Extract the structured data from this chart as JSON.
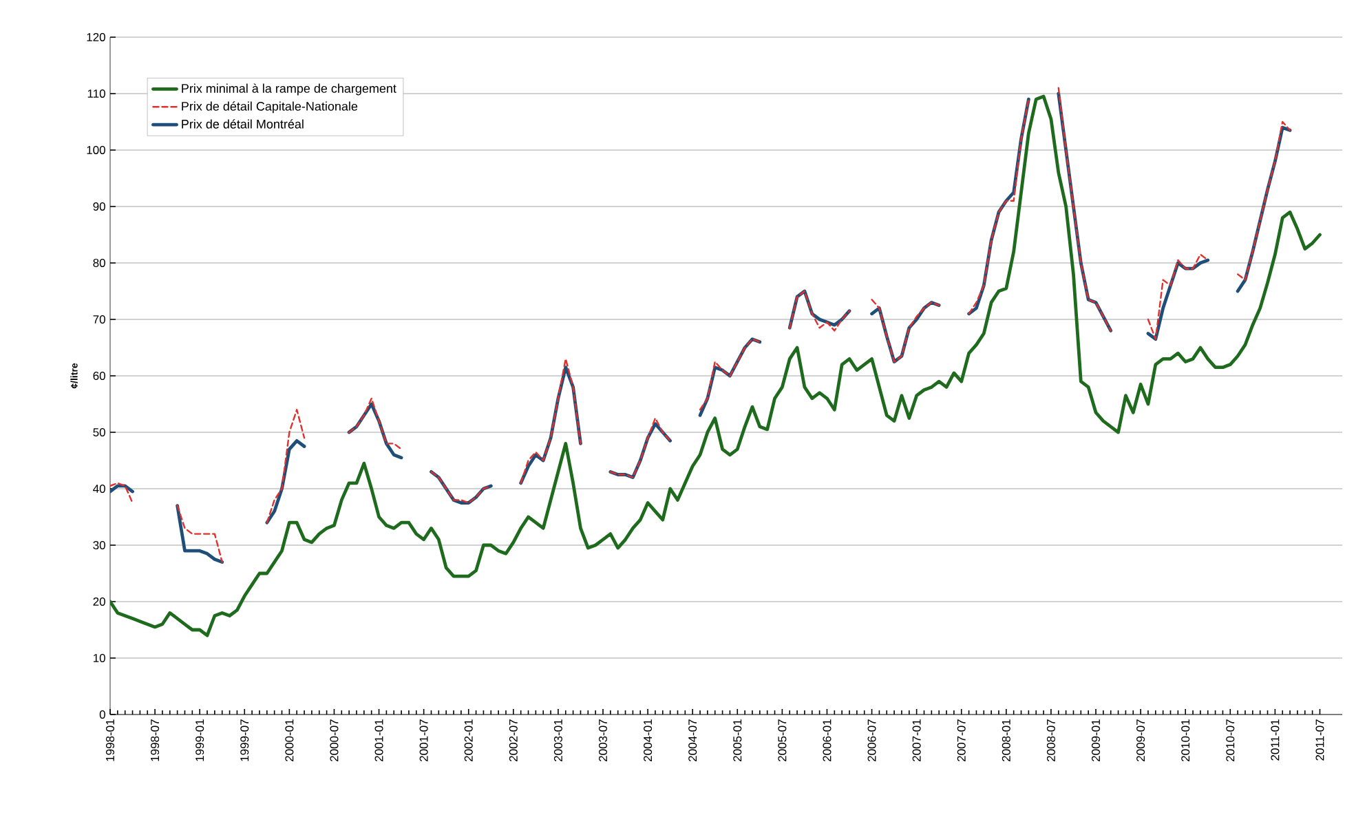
{
  "chart_data": {
    "type": "line",
    "ylabel": "¢/litre",
    "xlim": [
      "1998-01",
      "2011-10"
    ],
    "xticks": [
      "1998-01",
      "1998-07",
      "1999-01",
      "1999-07",
      "2000-01",
      "2000-07",
      "2001-01",
      "2001-07",
      "2002-01",
      "2002-07",
      "2003-01",
      "2003-07",
      "2004-01",
      "2004-07",
      "2005-01",
      "2005-07",
      "2006-01",
      "2006-07",
      "2007-01",
      "2007-07",
      "2008-01",
      "2008-07",
      "2009-01",
      "2009-07",
      "2010-01",
      "2010-07",
      "2011-01",
      "2011-07"
    ],
    "ylim": [
      0,
      120
    ],
    "yticks": [
      0,
      10,
      20,
      30,
      40,
      50,
      60,
      70,
      80,
      90,
      100,
      110,
      120
    ],
    "grid": "y",
    "legend": "top left",
    "series": [
      {
        "name": "Prix minimal à la rampe de chargement",
        "color": "#1e6b1e",
        "line_style": "solid",
        "x": [
          "1998-01",
          "1998-02",
          "1998-03",
          "1998-04",
          "1998-05",
          "1998-06",
          "1998-07",
          "1998-08",
          "1998-09",
          "1998-10",
          "1998-11",
          "1998-12",
          "1999-01",
          "1999-02",
          "1999-03",
          "1999-04",
          "1999-05",
          "1999-06",
          "1999-07",
          "1999-08",
          "1999-09",
          "1999-10",
          "1999-11",
          "1999-12",
          "2000-01",
          "2000-02",
          "2000-03",
          "2000-04",
          "2000-05",
          "2000-06",
          "2000-07",
          "2000-08",
          "2000-09",
          "2000-10",
          "2000-11",
          "2000-12",
          "2001-01",
          "2001-02",
          "2001-03",
          "2001-04",
          "2001-05",
          "2001-06",
          "2001-07",
          "2001-08",
          "2001-09",
          "2001-10",
          "2001-11",
          "2001-12",
          "2002-01",
          "2002-02",
          "2002-03",
          "2002-04",
          "2002-05",
          "2002-06",
          "2002-07",
          "2002-08",
          "2002-09",
          "2002-10",
          "2002-11",
          "2002-12",
          "2003-01",
          "2003-02",
          "2003-03",
          "2003-04",
          "2003-05",
          "2003-06",
          "2003-07",
          "2003-08",
          "2003-09",
          "2003-10",
          "2003-11",
          "2003-12",
          "2004-01",
          "2004-02",
          "2004-03",
          "2004-04",
          "2004-05",
          "2004-06",
          "2004-07",
          "2004-08",
          "2004-09",
          "2004-10",
          "2004-11",
          "2004-12",
          "2005-01",
          "2005-02",
          "2005-03",
          "2005-04",
          "2005-05",
          "2005-06",
          "2005-07",
          "2005-08",
          "2005-09",
          "2005-10",
          "2005-11",
          "2005-12",
          "2006-01",
          "2006-02",
          "2006-03",
          "2006-04",
          "2006-05",
          "2006-06",
          "2006-07",
          "2006-08",
          "2006-09",
          "2006-10",
          "2006-11",
          "2006-12",
          "2007-01",
          "2007-02",
          "2007-03",
          "2007-04",
          "2007-05",
          "2007-06",
          "2007-07",
          "2007-08",
          "2007-09",
          "2007-10",
          "2007-11",
          "2007-12",
          "2008-01",
          "2008-02",
          "2008-03",
          "2008-04",
          "2008-05",
          "2008-06",
          "2008-07",
          "2008-08",
          "2008-09",
          "2008-10",
          "2008-11",
          "2008-12",
          "2009-01",
          "2009-02",
          "2009-03",
          "2009-04",
          "2009-05",
          "2009-06",
          "2009-07",
          "2009-08",
          "2009-09",
          "2009-10",
          "2009-11",
          "2009-12",
          "2010-01",
          "2010-02",
          "2010-03",
          "2010-04",
          "2010-05",
          "2010-06",
          "2010-07",
          "2010-08",
          "2010-09",
          "2010-10",
          "2010-11",
          "2010-12",
          "2011-01",
          "2011-02",
          "2011-03",
          "2011-04",
          "2011-05",
          "2011-06",
          "2011-07"
        ],
        "values": [
          20,
          18,
          17.5,
          17,
          16.5,
          16,
          15.5,
          16,
          18,
          17,
          16,
          15,
          15,
          14,
          17.5,
          18,
          17.5,
          18.5,
          21,
          23,
          25,
          25,
          27,
          29,
          34,
          34,
          31,
          30.5,
          32,
          33,
          33.5,
          38,
          41,
          41,
          44.5,
          40,
          35,
          33.5,
          33,
          34,
          34,
          32,
          31,
          33,
          31,
          26,
          24.5,
          24.5,
          24.5,
          25.5,
          30,
          30,
          29,
          28.5,
          30.5,
          33,
          35,
          34,
          33,
          38,
          43,
          48,
          41,
          33,
          29.5,
          30,
          31,
          32,
          29.5,
          31,
          33,
          34.5,
          37.5,
          36,
          34.5,
          40,
          38,
          41,
          44,
          46,
          50,
          52.5,
          47,
          46,
          47,
          51,
          54.5,
          51,
          50.5,
          56,
          58,
          63,
          65,
          58,
          56,
          57,
          56,
          54,
          62,
          63,
          61,
          62,
          63,
          58,
          53,
          52,
          56.5,
          52.5,
          56.5,
          57.5,
          58,
          59,
          58,
          60.5,
          59,
          64,
          65.5,
          67.5,
          73,
          75,
          75.5,
          82,
          92.5,
          103,
          109,
          109.5,
          105.5,
          96,
          90,
          78,
          59,
          58,
          53.5,
          52,
          51,
          50,
          56.5,
          53.5,
          58.5,
          55,
          62,
          63,
          63,
          64,
          62.5,
          63,
          65,
          63,
          61.5,
          61.5,
          62,
          63.5,
          65.5,
          69,
          72,
          76.5,
          81.5,
          88,
          89,
          86,
          82.5,
          83.5,
          85
        ]
      },
      {
        "name": "Prix de détail Capitale-Nationale",
        "color": "#e0302c",
        "line_style": "dashed",
        "x": [
          "1998-01",
          "1998-02",
          "1998-03",
          "1998-04",
          "1998-05",
          "1998-10",
          "1998-11",
          "1998-12",
          "1999-01",
          "1999-02",
          "1999-03",
          "1999-04",
          "1999-05",
          "1999-10",
          "1999-11",
          "1999-12",
          "2000-01",
          "2000-02",
          "2000-03",
          "2000-04",
          "2000-09",
          "2000-10",
          "2000-11",
          "2000-12",
          "2001-01",
          "2001-02",
          "2001-03",
          "2001-04",
          "2001-05",
          "2001-08",
          "2001-09",
          "2001-10",
          "2001-11",
          "2001-12",
          "2002-01",
          "2002-02",
          "2002-03",
          "2002-04",
          "2002-05",
          "2002-08",
          "2002-09",
          "2002-10",
          "2002-11",
          "2002-12",
          "2003-01",
          "2003-02",
          "2003-03",
          "2003-04",
          "2003-05",
          "2003-08",
          "2003-09",
          "2003-10",
          "2003-11",
          "2003-12",
          "2004-01",
          "2004-02",
          "2004-03",
          "2004-04",
          "2004-05",
          "2004-08",
          "2004-09",
          "2004-10",
          "2004-11",
          "2004-12",
          "2005-01",
          "2005-02",
          "2005-03",
          "2005-04",
          "2005-05",
          "2005-08",
          "2005-09",
          "2005-10",
          "2005-11",
          "2005-12",
          "2006-01",
          "2006-02",
          "2006-03",
          "2006-04",
          "2006-05",
          "2006-07",
          "2006-08",
          "2006-09",
          "2006-10",
          "2006-11",
          "2006-12",
          "2007-01",
          "2007-02",
          "2007-03",
          "2007-04",
          "2007-05",
          "2007-08",
          "2007-09",
          "2007-10",
          "2007-11",
          "2007-12",
          "2008-01",
          "2008-02",
          "2008-03",
          "2008-04",
          "2008-05",
          "2008-08",
          "2008-09",
          "2008-10",
          "2008-11",
          "2008-12",
          "2009-01",
          "2009-02",
          "2009-03",
          "2009-04",
          "2009-08",
          "2009-09",
          "2009-10",
          "2009-11",
          "2009-12",
          "2010-01",
          "2010-02",
          "2010-03",
          "2010-04",
          "2010-05",
          "2010-08",
          "2010-09",
          "2010-10",
          "2010-11",
          "2010-12",
          "2011-01",
          "2011-02",
          "2011-03"
        ],
        "values": [
          40.5,
          41,
          40.5,
          37.5,
          null,
          37,
          33,
          32,
          32,
          32,
          32,
          27,
          null,
          34,
          38,
          40,
          50,
          54,
          49,
          null,
          50,
          51,
          53,
          56,
          52,
          48,
          48,
          47,
          null,
          43,
          42,
          40,
          38,
          38,
          37.5,
          38.5,
          40,
          40.5,
          null,
          41,
          45,
          46.5,
          45,
          49,
          56,
          63,
          58,
          48,
          null,
          43,
          42.5,
          42.5,
          42,
          45,
          49,
          52.5,
          50,
          48.5,
          null,
          54,
          56,
          62.5,
          61,
          60,
          62.5,
          65,
          66.5,
          66,
          null,
          68.5,
          74,
          75,
          71,
          68.5,
          69.5,
          68,
          70,
          71.5,
          null,
          73.5,
          72,
          67,
          62.5,
          63.5,
          68.5,
          70.5,
          72,
          73,
          72.5,
          null,
          71,
          73,
          76,
          84,
          89,
          91,
          91,
          102,
          109,
          null,
          111,
          100,
          90,
          80,
          73.5,
          73,
          70.5,
          68,
          null,
          70,
          66.5,
          77,
          76,
          80.5,
          79,
          79,
          81.5,
          80.5,
          null,
          78,
          77,
          82,
          87.5,
          93,
          98,
          105,
          103.5
        ]
      },
      {
        "name": "Prix de détail Montréal",
        "color": "#1f4e79",
        "line_style": "solid",
        "x": [
          "1998-01",
          "1998-02",
          "1998-03",
          "1998-04",
          "1998-05",
          "1998-10",
          "1998-11",
          "1998-12",
          "1999-01",
          "1999-02",
          "1999-03",
          "1999-04",
          "1999-05",
          "1999-10",
          "1999-11",
          "1999-12",
          "2000-01",
          "2000-02",
          "2000-03",
          "2000-04",
          "2000-09",
          "2000-10",
          "2000-11",
          "2000-12",
          "2001-01",
          "2001-02",
          "2001-03",
          "2001-04",
          "2001-05",
          "2001-08",
          "2001-09",
          "2001-10",
          "2001-11",
          "2001-12",
          "2002-01",
          "2002-02",
          "2002-03",
          "2002-04",
          "2002-05",
          "2002-08",
          "2002-09",
          "2002-10",
          "2002-11",
          "2002-12",
          "2003-01",
          "2003-02",
          "2003-03",
          "2003-04",
          "2003-05",
          "2003-08",
          "2003-09",
          "2003-10",
          "2003-11",
          "2003-12",
          "2004-01",
          "2004-02",
          "2004-03",
          "2004-04",
          "2004-05",
          "2004-08",
          "2004-09",
          "2004-10",
          "2004-11",
          "2004-12",
          "2005-01",
          "2005-02",
          "2005-03",
          "2005-04",
          "2005-05",
          "2005-08",
          "2005-09",
          "2005-10",
          "2005-11",
          "2005-12",
          "2006-01",
          "2006-02",
          "2006-03",
          "2006-04",
          "2006-05",
          "2006-07",
          "2006-08",
          "2006-09",
          "2006-10",
          "2006-11",
          "2006-12",
          "2007-01",
          "2007-02",
          "2007-03",
          "2007-04",
          "2007-05",
          "2007-08",
          "2007-09",
          "2007-10",
          "2007-11",
          "2007-12",
          "2008-01",
          "2008-02",
          "2008-03",
          "2008-04",
          "2008-05",
          "2008-08",
          "2008-09",
          "2008-10",
          "2008-11",
          "2008-12",
          "2009-01",
          "2009-02",
          "2009-03",
          "2009-04",
          "2009-08",
          "2009-09",
          "2009-10",
          "2009-11",
          "2009-12",
          "2010-01",
          "2010-02",
          "2010-03",
          "2010-04",
          "2010-05",
          "2010-08",
          "2010-09",
          "2010-10",
          "2010-11",
          "2010-12",
          "2011-01",
          "2011-02",
          "2011-03"
        ],
        "values": [
          39.5,
          40.5,
          40.5,
          39.5,
          null,
          37,
          29,
          29,
          29,
          28.5,
          27.5,
          27,
          null,
          34,
          36,
          40,
          47,
          48.5,
          47.5,
          null,
          50,
          51,
          53,
          55,
          52,
          48,
          46,
          45.5,
          null,
          43,
          42,
          40,
          38,
          37.5,
          37.5,
          38.5,
          40,
          40.5,
          null,
          41,
          44,
          46,
          45,
          49,
          56,
          61.5,
          58,
          48,
          null,
          43,
          42.5,
          42.5,
          42,
          45,
          49,
          51.5,
          50,
          48.5,
          null,
          53,
          56,
          61.5,
          61,
          60,
          62.5,
          65,
          66.5,
          66,
          null,
          68.5,
          74,
          75,
          71,
          70,
          69.5,
          69,
          70,
          71.5,
          null,
          71,
          72,
          67,
          62.5,
          63.5,
          68.5,
          70,
          72,
          73,
          72.5,
          null,
          71,
          72,
          76,
          84,
          89,
          91,
          92.5,
          102,
          109,
          null,
          110,
          100,
          90,
          80,
          73.5,
          73,
          70.5,
          68,
          null,
          67.5,
          66.5,
          72,
          76,
          80,
          79,
          79,
          80,
          80.5,
          null,
          75,
          77,
          82,
          87.5,
          93,
          98,
          104,
          103.5
        ]
      }
    ]
  }
}
